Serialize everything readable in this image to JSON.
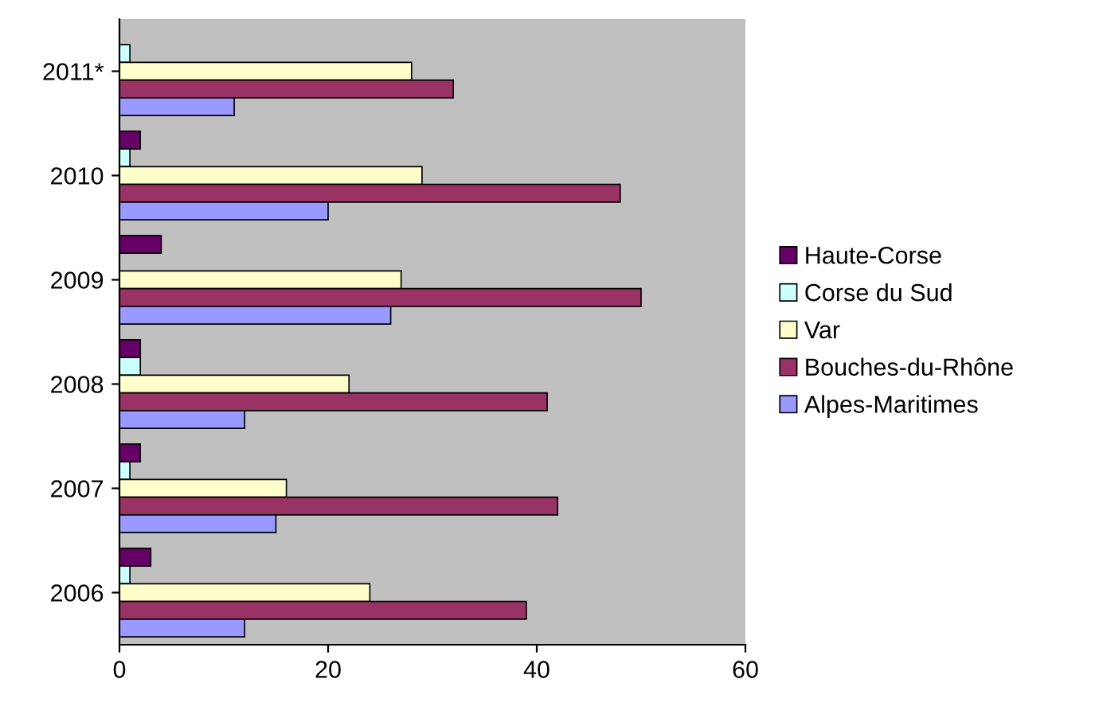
{
  "chart_data": {
    "type": "bar",
    "orientation": "horizontal",
    "categories": [
      "2011*",
      "2010",
      "2009",
      "2008",
      "2007",
      "2006"
    ],
    "series": [
      {
        "name": "Haute-Corse",
        "color": "#660066",
        "values": [
          null,
          2,
          4,
          2,
          2,
          3
        ]
      },
      {
        "name": "Corse du Sud",
        "color": "#ccffff",
        "values": [
          1,
          1,
          null,
          2,
          1,
          1
        ]
      },
      {
        "name": "Var",
        "color": "#ffffcc",
        "values": [
          28,
          29,
          27,
          22,
          16,
          24
        ]
      },
      {
        "name": "Bouches-du-Rhône",
        "color": "#993366",
        "values": [
          32,
          48,
          50,
          41,
          42,
          39
        ]
      },
      {
        "name": "Alpes-Maritimes",
        "color": "#9999ff",
        "values": [
          11,
          20,
          26,
          12,
          15,
          12
        ]
      }
    ],
    "xlim": [
      0,
      60
    ],
    "xticks": [
      0,
      20,
      40,
      60
    ],
    "grid": false,
    "legend": "right"
  }
}
